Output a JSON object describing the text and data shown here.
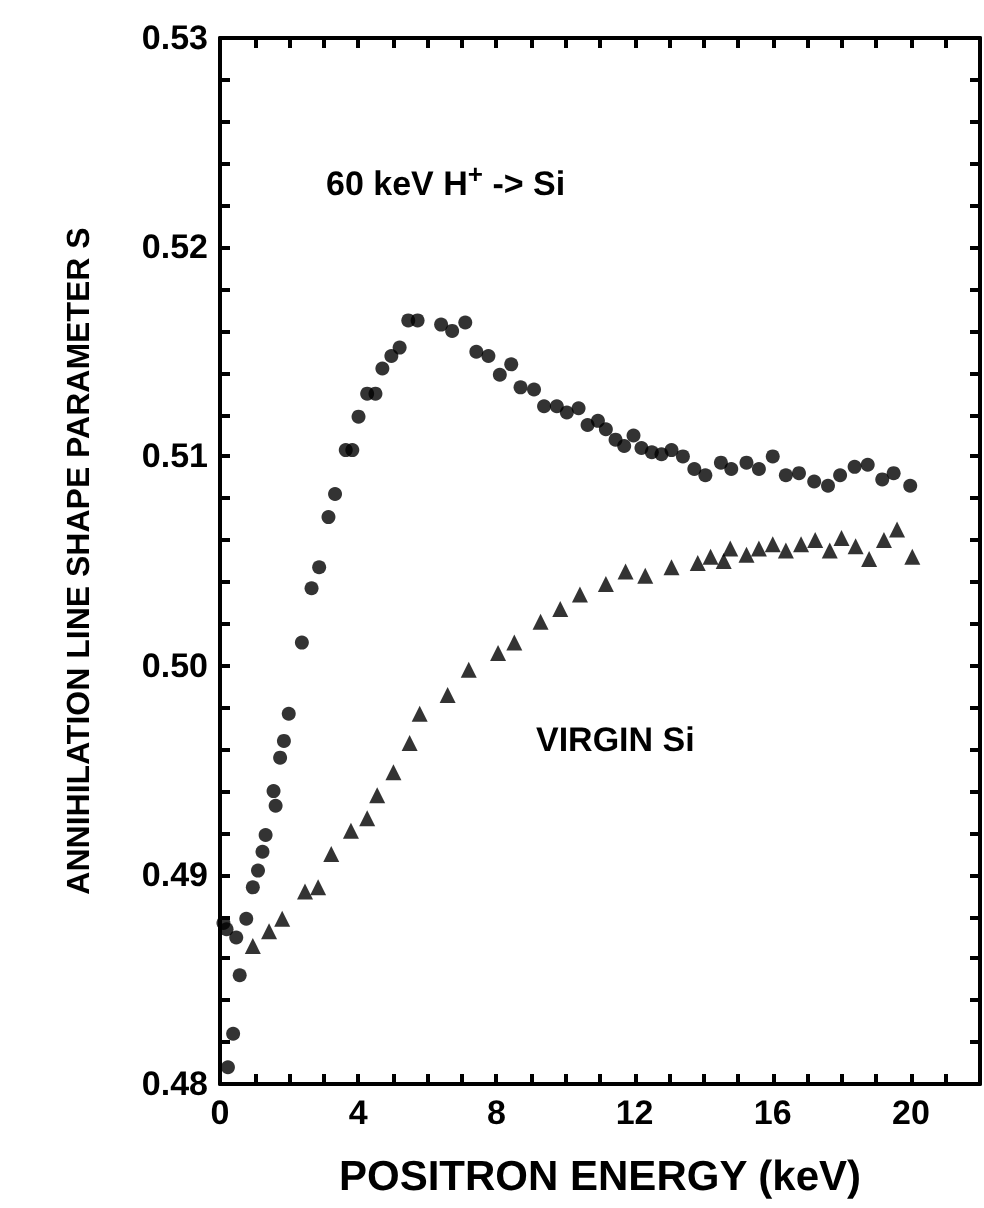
{
  "chart_data": {
    "type": "scatter",
    "xlabel": "POSITRON ENERGY (keV)",
    "ylabel": "ANNIHILATION LINE SHAPE PARAMETER S",
    "annotations": [
      "60 keV H$^{+}$ -> Si",
      "VIRGIN Si"
    ],
    "xlim": [
      0,
      22
    ],
    "xticks": [
      0,
      {
        "value": 1,
        "label": null
      },
      {
        "value": 2,
        "label": null
      },
      {
        "value": 3,
        "label": null
      },
      4,
      {
        "value": 5,
        "label": null
      },
      {
        "value": 6,
        "label": null
      },
      {
        "value": 7,
        "label": null
      },
      8,
      {
        "value": 9,
        "label": null
      },
      {
        "value": 10,
        "label": null
      },
      {
        "value": 11,
        "label": null
      },
      12,
      {
        "value": 13,
        "label": null
      },
      {
        "value": 14,
        "label": null
      },
      {
        "value": 15,
        "label": null
      },
      16,
      {
        "value": 17,
        "label": null
      },
      {
        "value": 18,
        "label": null
      },
      {
        "value": 19,
        "label": null
      },
      20,
      {
        "value": 21,
        "label": null
      }
    ],
    "ylim": [
      0.48,
      0.53
    ],
    "yticks": [
      0.48,
      {
        "value": 0.482,
        "label": null
      },
      {
        "value": 0.484,
        "label": null
      },
      {
        "value": 0.486,
        "label": null
      },
      {
        "value": 0.488,
        "label": null
      },
      0.49,
      {
        "value": 0.492,
        "label": null
      },
      {
        "value": 0.494,
        "label": null
      },
      {
        "value": 0.496,
        "label": null
      },
      {
        "value": 0.498,
        "label": null
      },
      {
        "value": 0.5,
        "label": "0.50"
      },
      {
        "value": 0.502,
        "label": null
      },
      {
        "value": 0.504,
        "label": null
      },
      {
        "value": 0.506,
        "label": null
      },
      {
        "value": 0.508,
        "label": null
      },
      0.51,
      {
        "value": 0.512,
        "label": null
      },
      {
        "value": 0.514,
        "label": null
      },
      {
        "value": 0.516,
        "label": null
      },
      {
        "value": 0.518,
        "label": null
      },
      0.52,
      {
        "value": 0.522,
        "label": null
      },
      {
        "value": 0.524,
        "label": null
      },
      {
        "value": 0.526,
        "label": null
      },
      {
        "value": 0.528,
        "label": null
      },
      0.53
    ],
    "grid": false,
    "series": [
      {
        "color": "#000000",
        "marker": "circle",
        "x": [
          0.1,
          0.19,
          0.23,
          0.38,
          0.47,
          0.57,
          0.76,
          0.95,
          1.1,
          1.23,
          1.32,
          1.55,
          1.61,
          1.74,
          1.85,
          1.99,
          2.37,
          2.65,
          2.87,
          3.14,
          3.33,
          3.64,
          3.83,
          4.01,
          4.26,
          4.5,
          4.7,
          4.96,
          5.2,
          5.45,
          5.72,
          6.4,
          6.72,
          7.1,
          7.42,
          7.77,
          8.1,
          8.43,
          8.7,
          9.09,
          9.38,
          9.75,
          10.04,
          10.38,
          10.64,
          10.94,
          11.17,
          11.45,
          11.7,
          11.97,
          12.2,
          12.5,
          12.78,
          13.07,
          13.4,
          13.73,
          14.05,
          14.5,
          14.8,
          15.24,
          15.6,
          16,
          16.38,
          16.76,
          17.2,
          17.6,
          17.95,
          18.37,
          18.75,
          19.17,
          19.5,
          19.98
        ],
        "values": [
          0.4877,
          0.4874,
          0.4808,
          0.4824,
          0.487,
          0.4852,
          0.4879,
          0.4894,
          0.4902,
          0.4911,
          0.4919,
          0.494,
          0.4933,
          0.4956,
          0.4964,
          0.4977,
          0.5011,
          0.5037,
          0.5047,
          0.5071,
          0.5082,
          0.5103,
          0.5103,
          0.5119,
          0.513,
          0.513,
          0.5142,
          0.5148,
          0.5152,
          0.5165,
          0.5165,
          0.5163,
          0.516,
          0.5164,
          0.515,
          0.5148,
          0.5139,
          0.5144,
          0.5133,
          0.5132,
          0.5124,
          0.5124,
          0.5121,
          0.5123,
          0.5115,
          0.5117,
          0.5113,
          0.5108,
          0.5105,
          0.511,
          0.5104,
          0.5102,
          0.5101,
          0.5103,
          0.51,
          0.5094,
          0.5091,
          0.5097,
          0.5094,
          0.5097,
          0.5094,
          0.51,
          0.5091,
          0.5092,
          0.5088,
          0.5086,
          0.5091,
          0.5095,
          0.5096,
          0.5089,
          0.5092,
          0.5086
        ]
      },
      {
        "color": "#000000",
        "marker": "triangle",
        "x": [
          0.95,
          1.42,
          1.8,
          2.46,
          2.84,
          3.22,
          3.79,
          4.26,
          4.55,
          5.02,
          5.49,
          5.78,
          6.59,
          7.2,
          8.05,
          8.52,
          9.28,
          9.85,
          10.42,
          11.17,
          11.74,
          12.31,
          13.07,
          13.83,
          14.2,
          14.58,
          14.77,
          15.24,
          15.6,
          16,
          16.38,
          16.82,
          17.23,
          17.65,
          17.99,
          18.4,
          18.79,
          19.22,
          19.6,
          20.04
        ],
        "values": [
          0.4866,
          0.4873,
          0.4879,
          0.4892,
          0.4894,
          0.491,
          0.4921,
          0.4927,
          0.4938,
          0.4949,
          0.4963,
          0.4977,
          0.4986,
          0.4998,
          0.5006,
          0.5011,
          0.5021,
          0.5027,
          0.5034,
          0.5039,
          0.5045,
          0.5043,
          0.5047,
          0.5049,
          0.5052,
          0.505,
          0.5056,
          0.5053,
          0.5056,
          0.5058,
          0.5055,
          0.5058,
          0.506,
          0.5055,
          0.5061,
          0.5057,
          0.5051,
          0.506,
          0.5065,
          0.5052
        ]
      }
    ]
  }
}
